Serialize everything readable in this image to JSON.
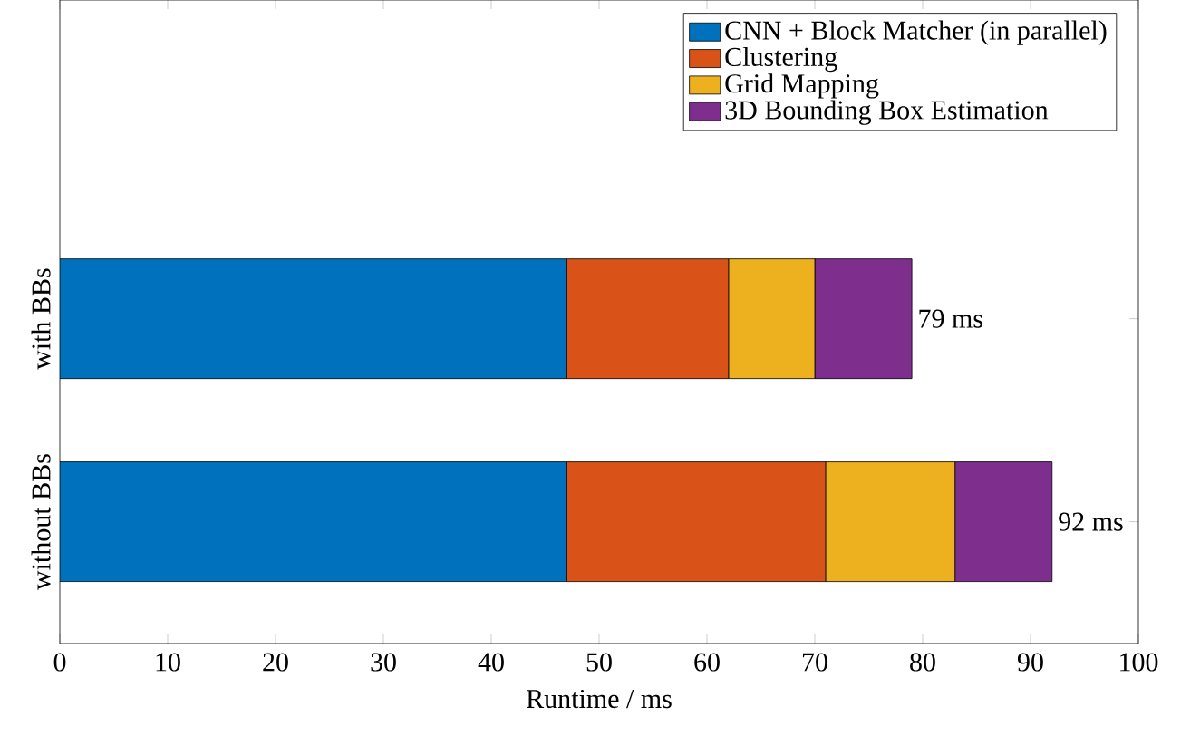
{
  "chart_data": {
    "type": "bar",
    "orientation": "horizontal",
    "stacked": true,
    "xlabel": "Runtime / ms",
    "categories": [
      "with BBs",
      "without BBs"
    ],
    "series": [
      {
        "name": "CNN + Block Matcher (in parallel)",
        "color": "#0072bd",
        "values": [
          47,
          47
        ]
      },
      {
        "name": "Clustering",
        "color": "#d95319",
        "values": [
          15,
          24
        ]
      },
      {
        "name": "Grid Mapping",
        "color": "#edb120",
        "values": [
          8,
          12
        ]
      },
      {
        "name": "3D Bounding Box Estimation",
        "color": "#7e2f8e",
        "values": [
          9,
          9
        ]
      }
    ],
    "totals": [
      "79 ms",
      "92 ms"
    ],
    "xlim": [
      0,
      100
    ],
    "xticks": [
      0,
      10,
      20,
      30,
      40,
      50,
      60,
      70,
      80,
      90,
      100
    ],
    "legend": "top right"
  }
}
